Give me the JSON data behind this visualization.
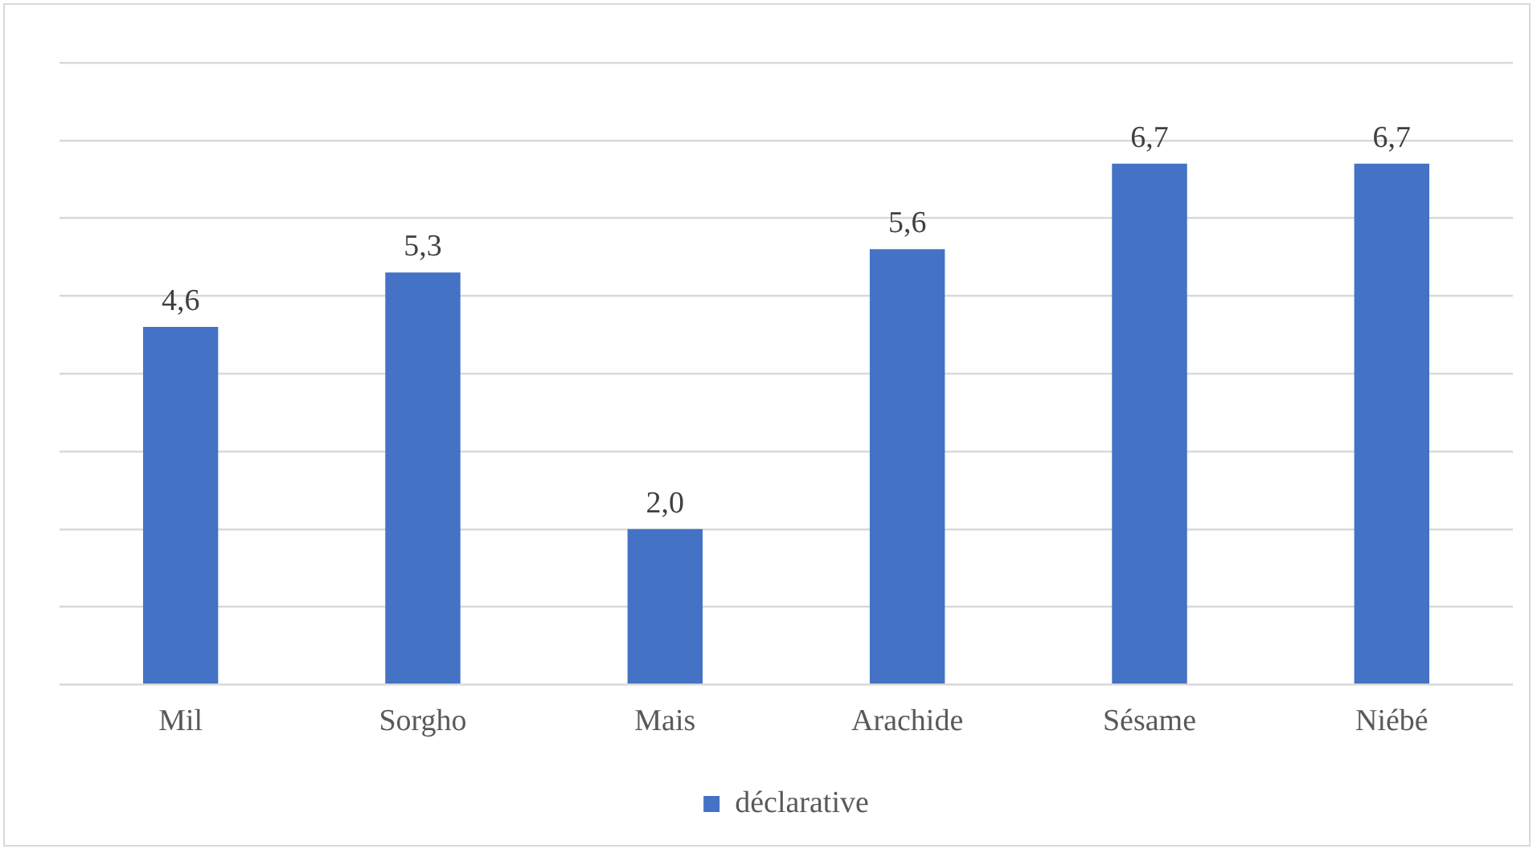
{
  "chart_data": {
    "type": "bar",
    "categories": [
      "Mil",
      "Sorgho",
      "Mais",
      "Arachide",
      "Sésame",
      "Niébé"
    ],
    "series": [
      {
        "name": "déclarative",
        "color": "#4472c4",
        "values": [
          4.6,
          5.3,
          2.0,
          5.6,
          6.7,
          6.7
        ],
        "value_labels": [
          "4,6",
          "5,3",
          "2,0",
          "5,6",
          "6,7",
          "6,7"
        ]
      }
    ],
    "ylim": [
      0,
      8
    ],
    "yticks": [
      {
        "value": 0,
        "label": null
      },
      {
        "value": 1,
        "label": null
      },
      {
        "value": 2,
        "label": null
      },
      {
        "value": 3,
        "label": null
      },
      {
        "value": 4,
        "label": null
      },
      {
        "value": 5,
        "label": null
      },
      {
        "value": 6,
        "label": null
      },
      {
        "value": 7,
        "label": null
      },
      {
        "value": 8,
        "label": null
      }
    ],
    "tick_labels": "x",
    "grid": "y",
    "legend": "bottom"
  }
}
